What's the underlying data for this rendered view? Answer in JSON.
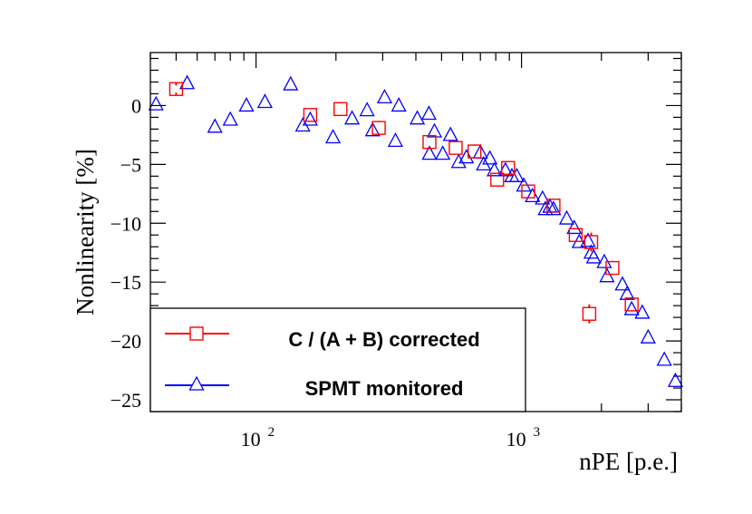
{
  "chart_data": {
    "type": "scatter",
    "xscale": "log",
    "xlim": [
      40,
      4000
    ],
    "ylim": [
      -26,
      4.5
    ],
    "xlabel": "nPE [p.e.]",
    "ylabel": "Nonlinearity [%]",
    "yticks": [
      0,
      -5,
      -10,
      -15,
      -20,
      -25
    ],
    "ytick_labels": [
      "0",
      "−5",
      "−10",
      "−15",
      "−20",
      "−25"
    ],
    "xticks": [
      100,
      1000
    ],
    "xtick_base": "10",
    "xtick_exponents": [
      "2",
      "3"
    ],
    "legend_position": "bottom-left",
    "series": [
      {
        "name": "C / (A + B) corrected",
        "marker": "square",
        "color": "#ff0000",
        "points": [
          {
            "x": 50,
            "y": 1.4,
            "err": 0.3
          },
          {
            "x": 160,
            "y": -0.8,
            "err": 0.5
          },
          {
            "x": 208,
            "y": -0.3,
            "err": 0.6
          },
          {
            "x": 290,
            "y": -1.9,
            "err": 0.6
          },
          {
            "x": 450,
            "y": -3.1,
            "err": 0.6
          },
          {
            "x": 565,
            "y": -3.6,
            "err": 0.5
          },
          {
            "x": 665,
            "y": -3.9,
            "err": 0.6
          },
          {
            "x": 810,
            "y": -6.3,
            "err": 0.6
          },
          {
            "x": 890,
            "y": -5.3,
            "err": 0.5
          },
          {
            "x": 1060,
            "y": -7.3,
            "err": 0.5
          },
          {
            "x": 1320,
            "y": -8.5,
            "err": 0.5
          },
          {
            "x": 1600,
            "y": -11.0,
            "err": 0.6
          },
          {
            "x": 1830,
            "y": -11.6,
            "err": 0.8
          },
          {
            "x": 1800,
            "y": -17.7,
            "err": 0.8
          },
          {
            "x": 2200,
            "y": -13.8,
            "err": 0.6
          },
          {
            "x": 2600,
            "y": -16.9,
            "err": 0.6
          }
        ]
      },
      {
        "name": "SPMT monitored",
        "marker": "triangle",
        "color": "#0000ff",
        "points": [
          {
            "x": 42,
            "y": 0.1
          },
          {
            "x": 55,
            "y": 1.9
          },
          {
            "x": 70,
            "y": -1.8
          },
          {
            "x": 80,
            "y": -1.2
          },
          {
            "x": 92,
            "y": 0.0
          },
          {
            "x": 108,
            "y": 0.3
          },
          {
            "x": 135,
            "y": 1.8
          },
          {
            "x": 150,
            "y": -1.7
          },
          {
            "x": 160,
            "y": -1.2
          },
          {
            "x": 195,
            "y": -2.7
          },
          {
            "x": 230,
            "y": -1.1
          },
          {
            "x": 262,
            "y": -0.4
          },
          {
            "x": 275,
            "y": -2.1
          },
          {
            "x": 305,
            "y": 0.7
          },
          {
            "x": 335,
            "y": -3.0
          },
          {
            "x": 345,
            "y": 0.0
          },
          {
            "x": 405,
            "y": -1.1
          },
          {
            "x": 448,
            "y": -0.7
          },
          {
            "x": 450,
            "y": -4.1
          },
          {
            "x": 470,
            "y": -2.2
          },
          {
            "x": 505,
            "y": -4.1
          },
          {
            "x": 540,
            "y": -2.5
          },
          {
            "x": 580,
            "y": -4.8
          },
          {
            "x": 620,
            "y": -4.4
          },
          {
            "x": 700,
            "y": -4.0
          },
          {
            "x": 720,
            "y": -5.0
          },
          {
            "x": 760,
            "y": -4.5
          },
          {
            "x": 790,
            "y": -5.5
          },
          {
            "x": 870,
            "y": -5.5
          },
          {
            "x": 920,
            "y": -6.0
          },
          {
            "x": 960,
            "y": -6.0
          },
          {
            "x": 1020,
            "y": -6.8
          },
          {
            "x": 1100,
            "y": -7.7
          },
          {
            "x": 1200,
            "y": -7.9
          },
          {
            "x": 1230,
            "y": -8.8
          },
          {
            "x": 1280,
            "y": -8.6
          },
          {
            "x": 1320,
            "y": -8.8
          },
          {
            "x": 1480,
            "y": -9.6
          },
          {
            "x": 1580,
            "y": -10.4
          },
          {
            "x": 1650,
            "y": -11.6
          },
          {
            "x": 1780,
            "y": -11.5
          },
          {
            "x": 1830,
            "y": -12.5
          },
          {
            "x": 1870,
            "y": -12.9
          },
          {
            "x": 2050,
            "y": -13.3
          },
          {
            "x": 2100,
            "y": -14.5
          },
          {
            "x": 2400,
            "y": -15.2
          },
          {
            "x": 2500,
            "y": -16.0
          },
          {
            "x": 2600,
            "y": -17.3
          },
          {
            "x": 2850,
            "y": -17.6
          },
          {
            "x": 3000,
            "y": -19.7
          },
          {
            "x": 3450,
            "y": -21.6
          },
          {
            "x": 3800,
            "y": -23.4
          }
        ]
      }
    ]
  }
}
